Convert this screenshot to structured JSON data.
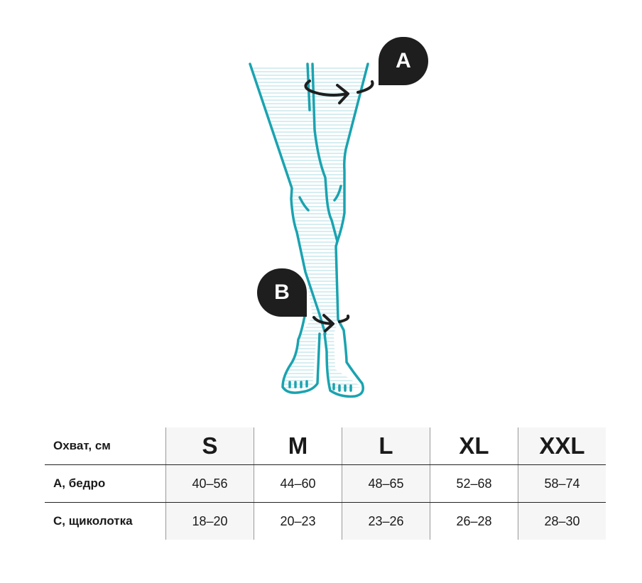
{
  "colors": {
    "leg_line": "#1aa3b0",
    "badge": "#1e1e1e",
    "stripe": "#d6eef1"
  },
  "badges": {
    "a": "A",
    "b": "B"
  },
  "table": {
    "header_label": "Охват, см",
    "sizes": [
      "S",
      "M",
      "L",
      "XL",
      "XXL"
    ],
    "rows": [
      {
        "label": "A, бедро",
        "values": [
          "40–56",
          "44–60",
          "48–65",
          "52–68",
          "58–74"
        ]
      },
      {
        "label": "C, щиколотка",
        "values": [
          "18–20",
          "20–23",
          "23–26",
          "26–28",
          "28–30"
        ]
      }
    ]
  }
}
